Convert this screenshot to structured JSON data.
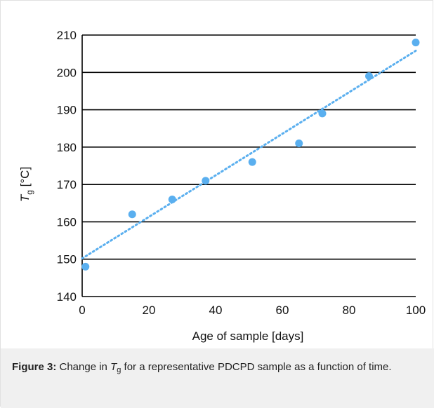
{
  "chart_data": {
    "type": "scatter",
    "xlabel": "Age of sample [days]",
    "ylabel_symbol": "T",
    "ylabel_subscript": "g",
    "ylabel_unit": " [°C]",
    "xlim": [
      0,
      100
    ],
    "ylim": [
      140,
      210
    ],
    "xticks": [
      0,
      20,
      40,
      60,
      80,
      100
    ],
    "yticks": [
      140,
      150,
      160,
      170,
      180,
      190,
      200,
      210
    ],
    "grid": "horizontal",
    "series": [
      {
        "x": [
          1,
          15,
          27,
          37,
          51,
          65,
          72,
          86,
          100
        ],
        "y": [
          148,
          162,
          166,
          171,
          176,
          181,
          189,
          199,
          208
        ],
        "color": "#5aafef"
      }
    ],
    "trendline": {
      "style": "dotted",
      "color": "#5aafef",
      "x": [
        0,
        100
      ],
      "y": [
        150.2,
        205.8
      ]
    }
  },
  "caption": {
    "label": "Figure 3:",
    "text_before": " Change in ",
    "symbol": "T",
    "subscript": "g",
    "text_after": " for a representative PDCPD sample as a function of time."
  }
}
